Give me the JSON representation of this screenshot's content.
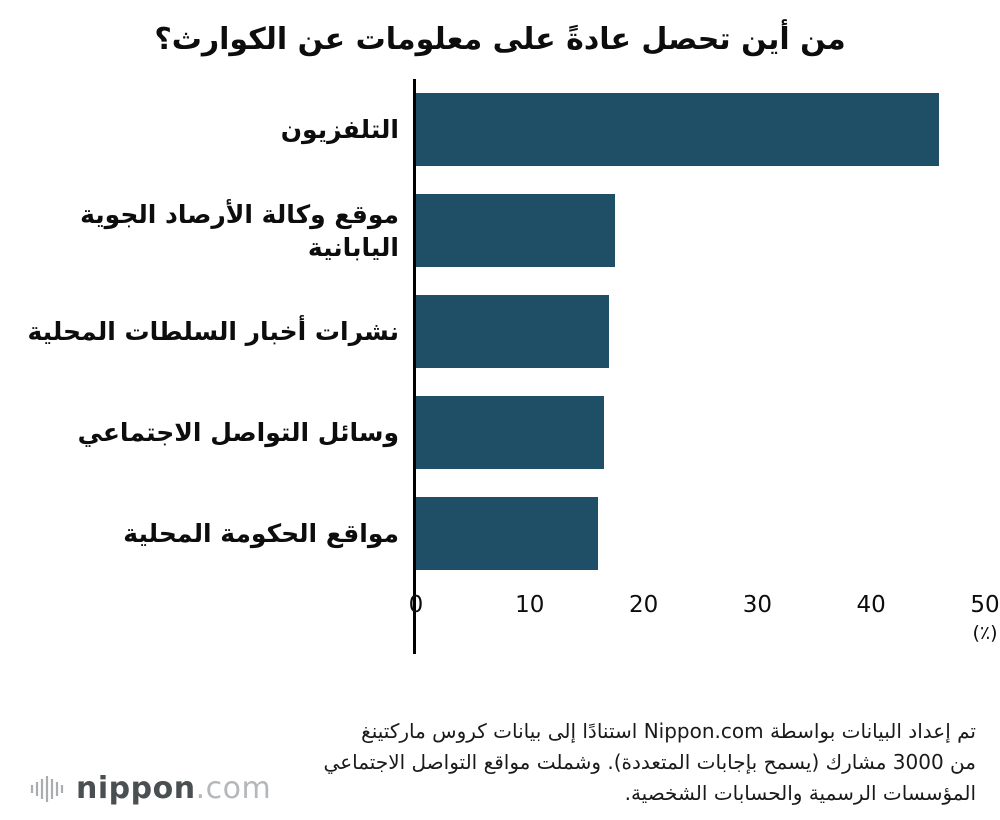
{
  "title": "من أين تحصل عادةً على معلومات عن الكوارث؟",
  "chart_data": {
    "type": "bar",
    "orientation": "horizontal",
    "title": "من أين تحصل عادةً على معلومات عن الكوارث؟",
    "categories": [
      "التلفزيون",
      "موقع وكالة الأرصاد الجوية اليابانية",
      "نشرات أخبار السلطات المحلية",
      "وسائل التواصل الاجتماعي",
      "مواقع الحكومة المحلية"
    ],
    "values": [
      46,
      17.5,
      17,
      16.5,
      16
    ],
    "xlim": [
      0,
      50
    ],
    "xticks": [
      "0",
      "10",
      "20",
      "30",
      "40",
      "50"
    ],
    "x_unit_label": "(٪)",
    "bar_color": "#1e4f66",
    "grid": false,
    "legend": false
  },
  "footer": {
    "note_lines": [
      "تم إعداد البيانات بواسطة Nippon.com استنادًا إلى بيانات كروس ماركتينغ",
      "من 3000 مشارك (يسمح بإجابات المتعددة). وشملت مواقع التواصل الاجتماعي",
      "المؤسسات الرسمية والحسابات الشخصية."
    ]
  },
  "logo": {
    "name": "nippon",
    "tld": ".com"
  }
}
